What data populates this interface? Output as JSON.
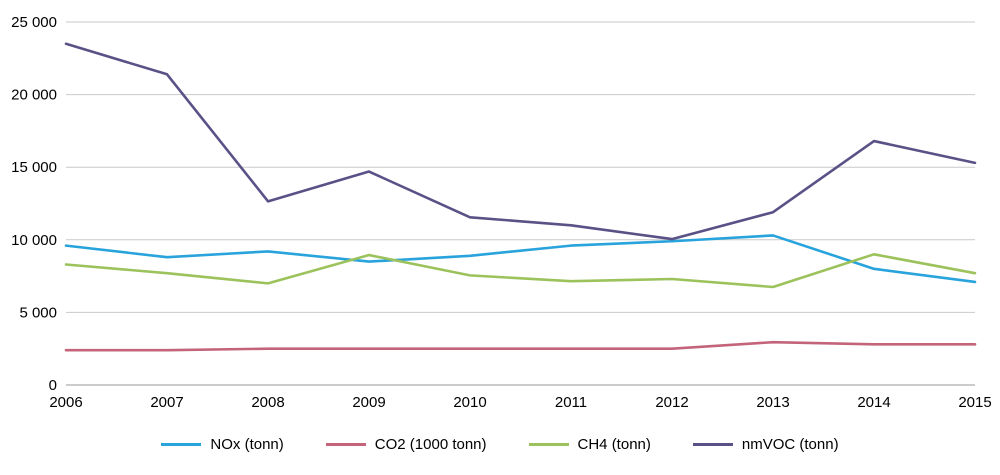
{
  "chart_data": {
    "type": "line",
    "title": "",
    "xlabel": "",
    "ylabel": "",
    "categories": [
      "2006",
      "2007",
      "2008",
      "2009",
      "2010",
      "2011",
      "2012",
      "2013",
      "2014",
      "2015"
    ],
    "series": [
      {
        "name": "NOx (tonn)",
        "color": "#29a3dc",
        "values": [
          9600,
          8800,
          9200,
          8500,
          8900,
          9600,
          9900,
          10300,
          8000,
          7100
        ]
      },
      {
        "name": "CO2 (1000 tonn)",
        "color": "#c4647b",
        "values": [
          2400,
          2400,
          2500,
          2500,
          2500,
          2500,
          2500,
          2950,
          2800,
          2800
        ]
      },
      {
        "name": "CH4 (tonn)",
        "color": "#9cc25c",
        "values": [
          8300,
          7700,
          7000,
          8950,
          7550,
          7150,
          7300,
          6750,
          9000,
          7700
        ]
      },
      {
        "name": "nmVOC  (tonn)",
        "color": "#5a5287",
        "values": [
          23500,
          21400,
          12650,
          14700,
          11550,
          11000,
          10050,
          11900,
          16800,
          15300
        ]
      }
    ],
    "ylim": [
      0,
      25000
    ],
    "y_ticks": [
      0,
      5000,
      10000,
      15000,
      20000,
      25000
    ],
    "y_tick_labels": [
      "0",
      "5 000",
      "10 000",
      "15 000",
      "20 000",
      "25 000"
    ],
    "grid": true,
    "gridline_color": "#c9c9c9",
    "axis_line_color": "#9a9a9a",
    "legend_position": "bottom"
  }
}
